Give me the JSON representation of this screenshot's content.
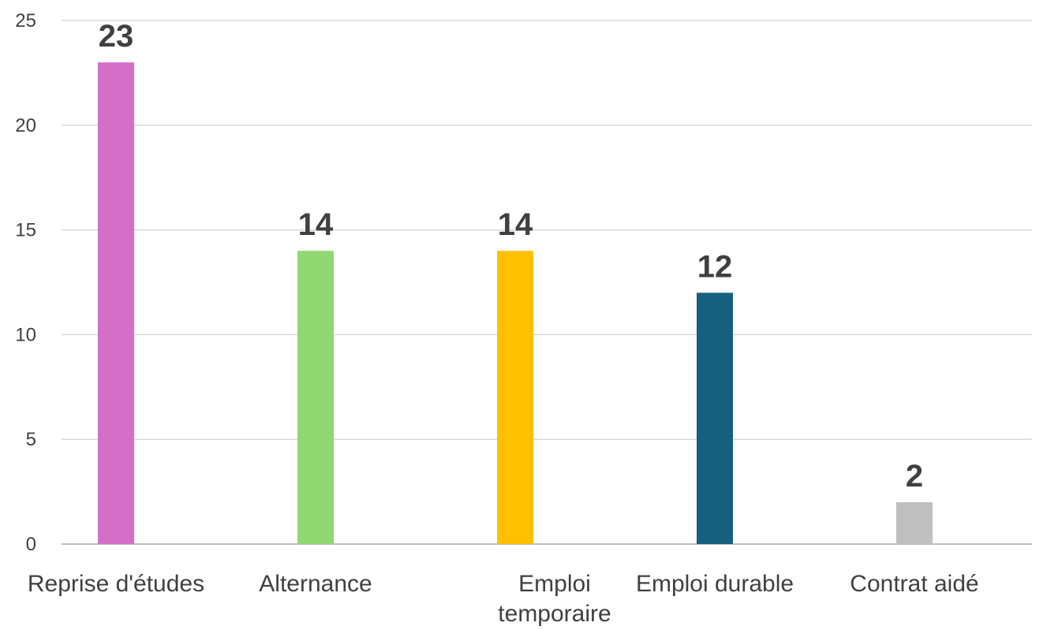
{
  "chart_data": {
    "type": "bar",
    "title": "",
    "xlabel": "",
    "ylabel": "",
    "ylim": [
      0,
      25
    ],
    "yticks": [
      0,
      5,
      10,
      15,
      20,
      25
    ],
    "grid": true,
    "legend": "none",
    "categories": [
      [
        "Reprise d'études"
      ],
      [
        "Alternance"
      ],
      [
        "Emploi",
        "temporaire"
      ],
      [
        "Emploi  durable"
      ],
      [
        "Contrat aidé"
      ]
    ],
    "values": [
      23,
      14,
      14,
      12,
      2
    ],
    "colors": [
      "#d46ec8",
      "#90d872",
      "#ffc000",
      "#16607f",
      "#bfbfbf"
    ],
    "gridline_color": "#d9d9d9",
    "axis_color": "#bfbfbf"
  }
}
